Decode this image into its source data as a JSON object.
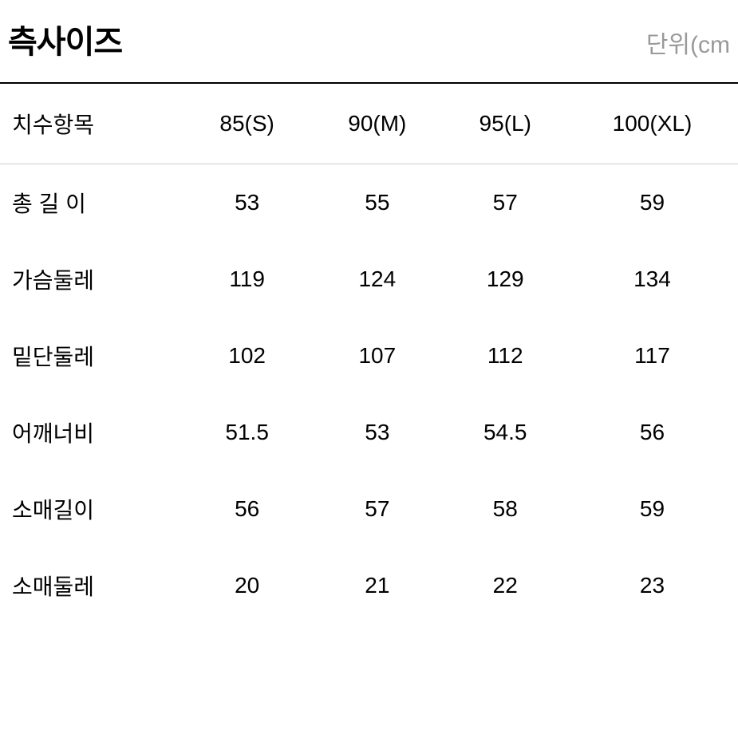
{
  "header": {
    "title": "측사이즈",
    "unit": "단위(cm"
  },
  "table": {
    "columns": [
      "치수항목",
      "85(S)",
      "90(M)",
      "95(L)",
      "100(XL)"
    ],
    "rows": [
      {
        "label": "총 길 이",
        "spaced": false,
        "values": [
          "53",
          "55",
          "57",
          "59"
        ]
      },
      {
        "label": "가슴둘레",
        "spaced": false,
        "values": [
          "119",
          "124",
          "129",
          "134"
        ]
      },
      {
        "label": "밑단둘레",
        "spaced": false,
        "values": [
          "102",
          "107",
          "112",
          "117"
        ]
      },
      {
        "label": "어깨너비",
        "spaced": false,
        "values": [
          "51.5",
          "53",
          "54.5",
          "56"
        ]
      },
      {
        "label": "소매길이",
        "spaced": false,
        "values": [
          "56",
          "57",
          "58",
          "59"
        ]
      },
      {
        "label": "소매둘레",
        "spaced": false,
        "values": [
          "20",
          "21",
          "22",
          "23"
        ]
      }
    ]
  },
  "styling": {
    "background_color": "#ffffff",
    "text_color": "#000000",
    "unit_color": "#999999",
    "border_top_color": "#000000",
    "border_row_color": "#cccccc",
    "title_fontsize": 40,
    "header_fontsize": 28,
    "cell_fontsize": 28,
    "unit_fontsize": 30
  }
}
